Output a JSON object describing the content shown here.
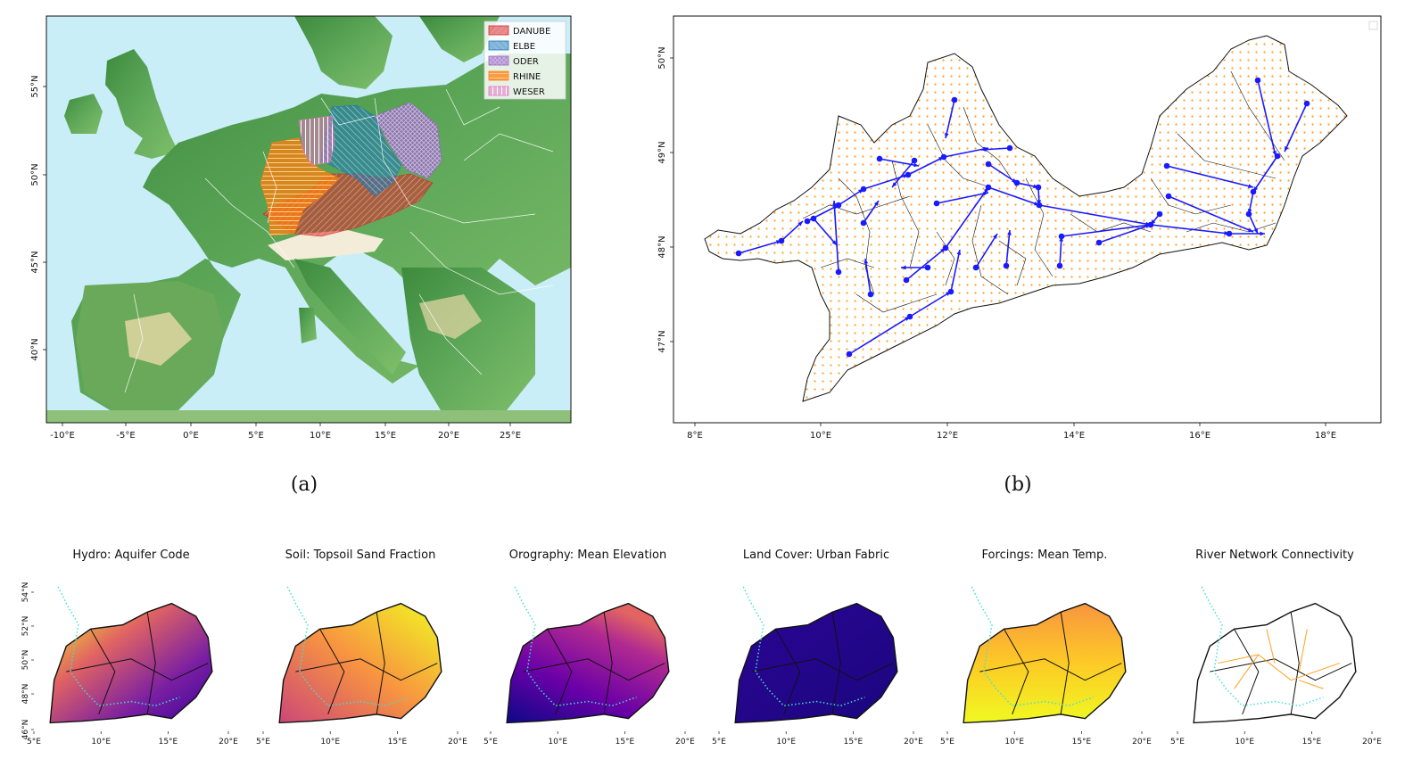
{
  "panel_a": {
    "caption": "(a)",
    "x_ticks": [
      "-10°E",
      "-5°E",
      "0°E",
      "5°E",
      "10°E",
      "15°E",
      "20°E",
      "25°E"
    ],
    "y_ticks": [
      "55°N",
      "50°N",
      "45°N",
      "40°N"
    ],
    "legend": [
      {
        "label": "DANUBE",
        "color": "#d62728"
      },
      {
        "label": "ELBE",
        "color": "#1f77b4"
      },
      {
        "label": "ODER",
        "color": "#9467bd"
      },
      {
        "label": "RHINE",
        "color": "#ff7f0e"
      },
      {
        "label": "WESER",
        "color": "#e377c2"
      }
    ]
  },
  "panel_b": {
    "caption": "(b)",
    "x_ticks": [
      "8°E",
      "10°E",
      "12°E",
      "14°E",
      "16°E",
      "18°E"
    ],
    "y_ticks": [
      "50°N",
      "49°N",
      "48°N",
      "47°N"
    ]
  },
  "small_panels": {
    "titles": [
      "Hydro: Aquifer Code",
      "Soil: Topsoil Sand Fraction",
      "Orography: Mean Elevation",
      "Land Cover: Urban Fabric",
      "Forcings: Mean Temp.",
      "River Network Connectivity"
    ],
    "x_ticks": [
      "5°E",
      "10°E",
      "15°E",
      "20°E"
    ],
    "y_ticks": [
      "54°N",
      "52°N",
      "50°N",
      "48°N",
      "46°N"
    ]
  }
}
